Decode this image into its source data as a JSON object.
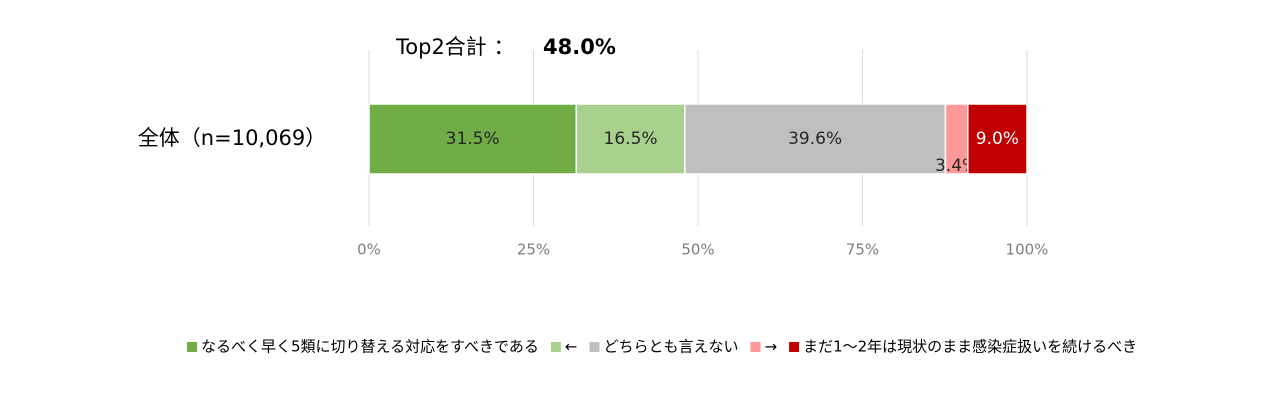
{
  "chart_data": {
    "type": "stacked-bar-horizontal",
    "annotation": {
      "label": "Top2合計 ：",
      "value": "48.0%"
    },
    "categories": [
      "全体（n=10,069）"
    ],
    "series": [
      {
        "name": "なるべく早く5類に切り替える対応をすべきである",
        "color": "#70ad47",
        "label_color": "#262626",
        "values": [
          31.5
        ],
        "value_labels": [
          "31.5%"
        ]
      },
      {
        "name": "←",
        "color": "#a9d18e",
        "label_color": "#262626",
        "values": [
          16.5
        ],
        "value_labels": [
          "16.5%"
        ]
      },
      {
        "name": "どちらとも言えない",
        "color": "#bfbfbf",
        "label_color": "#262626",
        "values": [
          39.6
        ],
        "value_labels": [
          "39.6%"
        ]
      },
      {
        "name": "→",
        "color": "#ff9999",
        "label_color": "#262626",
        "values": [
          3.4
        ],
        "value_labels": [
          "3.4%"
        ]
      },
      {
        "name": "まだ1～2年は現状のまま感染症扱いを続けるべき",
        "color": "#c00000",
        "label_color": "#ffffff",
        "values": [
          9.0
        ],
        "value_labels": [
          "9.0%"
        ]
      }
    ],
    "xlim": [
      0,
      100
    ],
    "xticks": [
      {
        "value": 0,
        "label": "0%"
      },
      {
        "value": 25,
        "label": "25%"
      },
      {
        "value": 50,
        "label": "50%"
      },
      {
        "value": 75,
        "label": "75%"
      },
      {
        "value": 100,
        "label": "100%"
      }
    ],
    "grid": true,
    "legend": "bottom"
  }
}
